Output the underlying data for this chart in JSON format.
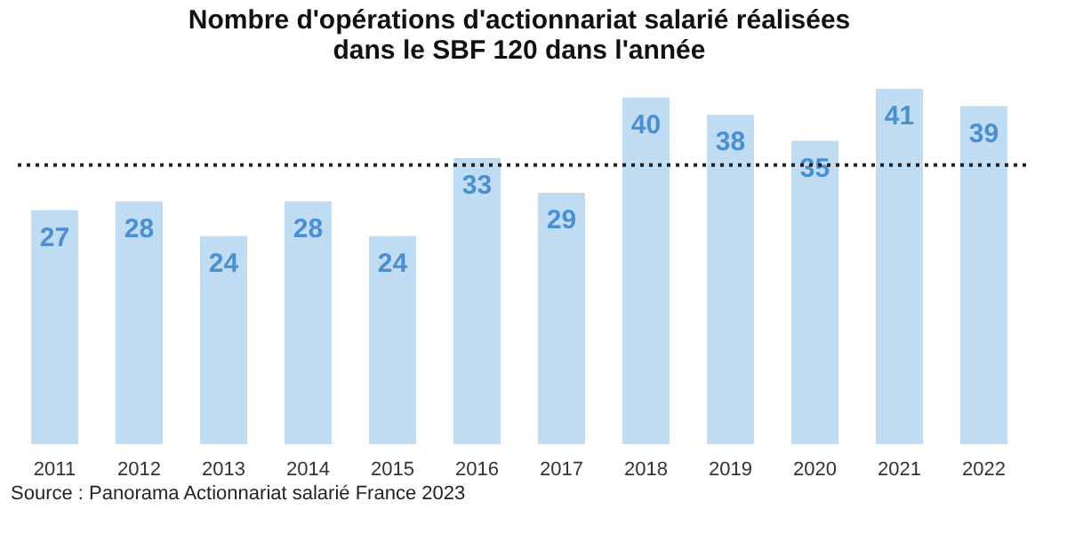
{
  "chart_data": {
    "type": "bar",
    "title": [
      "Nombre d'opérations d'actionnariat salarié réalisées",
      "dans le SBF 120 dans l'année"
    ],
    "categories": [
      "2011",
      "2012",
      "2013",
      "2014",
      "2015",
      "2016",
      "2017",
      "2018",
      "2019",
      "2020",
      "2021",
      "2022"
    ],
    "values": [
      27,
      28,
      24,
      28,
      24,
      33,
      29,
      40,
      38,
      35,
      41,
      39
    ],
    "color": "#bfdcf3",
    "data_labels": true,
    "ref_lines": [
      {
        "axis": "y",
        "value": 32.2,
        "color": "#222222",
        "line_style": "dotted"
      }
    ],
    "grid": false,
    "annotations": [
      "Source : Panorama Actionnariat salarié France 2023"
    ]
  }
}
